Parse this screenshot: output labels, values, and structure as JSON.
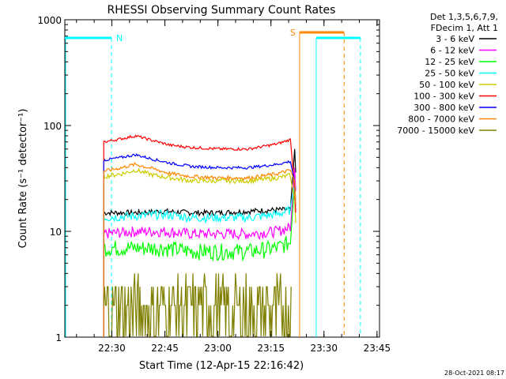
{
  "chart_data": {
    "type": "line",
    "title": "RHESSI Observing Summary Count Rates",
    "xlabel": "Start Time (12-Apr-15 22:16:42)",
    "ylabel": "Count Rate (s⁻¹ detector⁻¹)",
    "yscale": "log",
    "ylim": [
      1,
      1000
    ],
    "x_unit": "minutes from 22:16:42",
    "xlim": [
      0,
      89
    ],
    "x_ticks": [
      {
        "label": "22:30",
        "value": 13.3
      },
      {
        "label": "22:45",
        "value": 28.3
      },
      {
        "label": "23:00",
        "value": 43.3
      },
      {
        "label": "23:15",
        "value": 58.3
      },
      {
        "label": "23:30",
        "value": 73.3
      },
      {
        "label": "23:45",
        "value": 88.3
      }
    ],
    "y_ticks": [
      {
        "label": "1",
        "value": 1
      },
      {
        "label": "10",
        "value": 10
      },
      {
        "label": "100",
        "value": 100
      },
      {
        "label": "1000",
        "value": 1000
      }
    ],
    "legend_header": [
      "Det 1,3,5,6,7,9,",
      "FDecim 1, Att 1"
    ],
    "series": [
      {
        "name": "3 - 6 keV",
        "color": "#000000",
        "x": [
          11,
          20,
          28,
          36,
          44,
          52,
          60,
          64
        ],
        "values": [
          15,
          15,
          15.5,
          15,
          15,
          15.5,
          16,
          16
        ]
      },
      {
        "name": "6 - 12 keV",
        "color": "#ff00ff",
        "x": [
          11,
          20,
          28,
          36,
          44,
          52,
          60,
          64
        ],
        "values": [
          9.5,
          10,
          10,
          9.5,
          9.5,
          9.5,
          10,
          11
        ]
      },
      {
        "name": "12 - 25 keV",
        "color": "#00ff00",
        "x": [
          11,
          20,
          28,
          36,
          44,
          52,
          60,
          64
        ],
        "values": [
          7,
          7,
          7,
          6.5,
          6.5,
          6.5,
          7,
          8
        ]
      },
      {
        "name": "25 - 50 keV",
        "color": "#00ffff",
        "x": [
          11,
          20,
          28,
          36,
          44,
          52,
          60,
          64
        ],
        "values": [
          13.5,
          14,
          14.5,
          13.5,
          13.5,
          13.5,
          14.5,
          16
        ]
      },
      {
        "name": "50 - 100 keV",
        "color": "#cccc00",
        "x": [
          11,
          16,
          20,
          25,
          30,
          36,
          44,
          52,
          60,
          64
        ],
        "values": [
          33,
          35,
          38,
          34,
          32,
          30,
          30,
          30,
          32,
          34
        ]
      },
      {
        "name": "100 - 300 keV",
        "color": "#ff0000",
        "x": [
          11,
          16,
          20,
          25,
          30,
          36,
          44,
          52,
          60,
          64
        ],
        "values": [
          70,
          75,
          80,
          72,
          65,
          62,
          60,
          60,
          67,
          74
        ]
      },
      {
        "name": "300 - 800 keV",
        "color": "#0000ff",
        "x": [
          11,
          16,
          20,
          25,
          30,
          36,
          44,
          52,
          60,
          64
        ],
        "values": [
          47,
          50,
          53,
          48,
          44,
          41,
          40,
          40,
          43,
          46
        ]
      },
      {
        "name": "800 - 7000 keV",
        "color": "#ff8800",
        "x": [
          11,
          16,
          20,
          25,
          30,
          36,
          44,
          52,
          60,
          64
        ],
        "values": [
          37,
          40,
          43,
          39,
          35,
          33,
          32,
          32,
          35,
          38
        ]
      },
      {
        "name": "7000 - 15000 keV",
        "color": "#808000",
        "x": [
          11,
          64
        ],
        "values": [
          2.5,
          2.5
        ]
      }
    ],
    "spike": {
      "x": 65,
      "values": [
        60,
        40,
        30,
        28,
        20,
        25
      ]
    },
    "night_intervals": [
      {
        "label": "N",
        "start": 0,
        "end": 13.2
      }
    ],
    "saa_intervals": [
      {
        "label": "S",
        "start": 66.4,
        "end": 79
      }
    ],
    "night_after": {
      "start": 71.1,
      "end": 83.6
    },
    "timestamp": "28-Oct-2021 08:17"
  }
}
